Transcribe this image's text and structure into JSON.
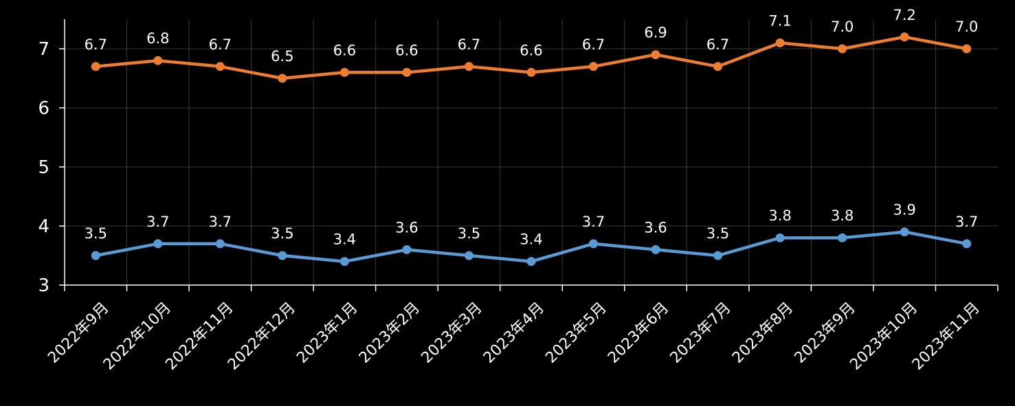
{
  "chart_data": {
    "type": "line",
    "categories": [
      "2022年9月",
      "2022年10月",
      "2022年11月",
      "2022年12月",
      "2023年1月",
      "2023年2月",
      "2023年3月",
      "2023年4月",
      "2023年5月",
      "2023年6月",
      "2023年7月",
      "2023年8月",
      "2023年9月",
      "2023年10月",
      "2023年11月"
    ],
    "series": [
      {
        "color": "#ED7D31",
        "values": [
          6.7,
          6.8,
          6.7,
          6.5,
          6.6,
          6.6,
          6.7,
          6.6,
          6.7,
          6.9,
          6.7,
          7.1,
          7.0,
          7.2,
          7.0
        ],
        "labels": [
          "6.7",
          "6.8",
          "6.7",
          "6.5",
          "6.6",
          "6.6",
          "6.7",
          "6.6",
          "6.7",
          "6.9",
          "6.7",
          "7.1",
          "7.0",
          "7.2",
          "7.0"
        ]
      },
      {
        "color": "#5B9BD5",
        "values": [
          3.5,
          3.7,
          3.7,
          3.5,
          3.4,
          3.6,
          3.5,
          3.4,
          3.7,
          3.6,
          3.5,
          3.8,
          3.8,
          3.9,
          3.7
        ],
        "labels": [
          "3.5",
          "3.7",
          "3.7",
          "3.5",
          "3.4",
          "3.6",
          "3.5",
          "3.4",
          "3.7",
          "3.6",
          "3.5",
          "3.8",
          "3.8",
          "3.9",
          "3.7"
        ]
      }
    ],
    "ylim": [
      3,
      7.5
    ],
    "yticks": [
      "3",
      "4",
      "5",
      "6",
      "7"
    ],
    "grid": true,
    "legend": "none",
    "title": "",
    "xlabel": "",
    "ylabel": ""
  }
}
